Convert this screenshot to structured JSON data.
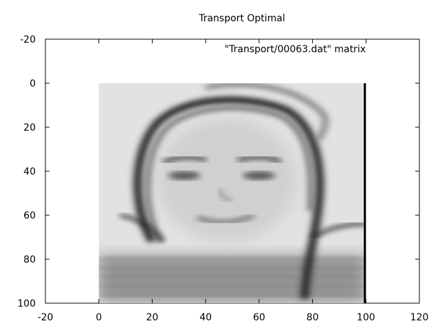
{
  "chart_data": {
    "type": "heatmap",
    "title": "Transport Optimal",
    "legend_label": "\"Transport/00063.dat\" matrix",
    "legend_position": "top-right",
    "matrix_extent": {
      "x": [
        0,
        100
      ],
      "y": [
        0,
        100
      ]
    },
    "xlim": [
      -20,
      120
    ],
    "ylim": [
      -20,
      100
    ],
    "y_reversed": true,
    "xticks": [
      -20,
      0,
      20,
      40,
      60,
      80,
      100,
      120
    ],
    "yticks": [
      -20,
      0,
      20,
      40,
      60,
      80,
      100
    ],
    "colormap": "grayscale",
    "grid": false
  }
}
